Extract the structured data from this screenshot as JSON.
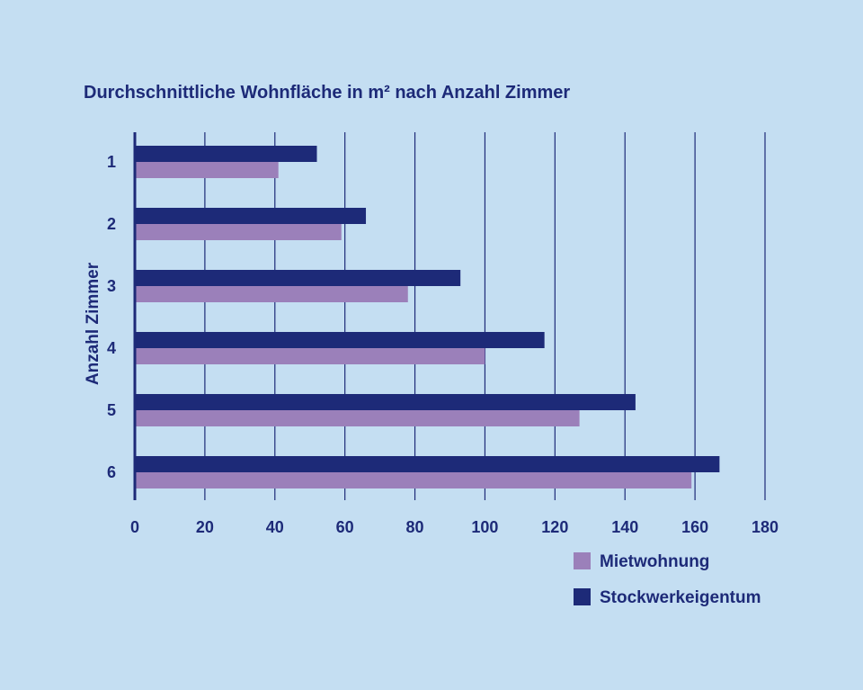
{
  "chart_data": {
    "type": "bar",
    "orientation": "horizontal",
    "title": "Durchschnittliche Wohnfläche in m² nach Anzahl Zimmer",
    "ylabel": "Anzahl Zimmer",
    "xlabel": "",
    "categories": [
      "1",
      "2",
      "3",
      "4",
      "5",
      "6"
    ],
    "series": [
      {
        "name": "Stockwerkeigentum",
        "color": "#1d2a78",
        "values": [
          52,
          66,
          93,
          117,
          143,
          167
        ]
      },
      {
        "name": "Mietwohnung",
        "color": "#9b80ba",
        "values": [
          41,
          59,
          78,
          100,
          127,
          159
        ]
      }
    ],
    "xlim": [
      0,
      180
    ],
    "xticks": [
      0,
      20,
      40,
      60,
      80,
      100,
      120,
      140,
      160,
      180
    ],
    "grid": "vertical",
    "legend": {
      "placement": "bottom-right",
      "entries": [
        {
          "label": "Mietwohnung",
          "color": "#9b80ba"
        },
        {
          "label": "Stockwerkeigentum",
          "color": "#1d2a78"
        }
      ]
    }
  }
}
